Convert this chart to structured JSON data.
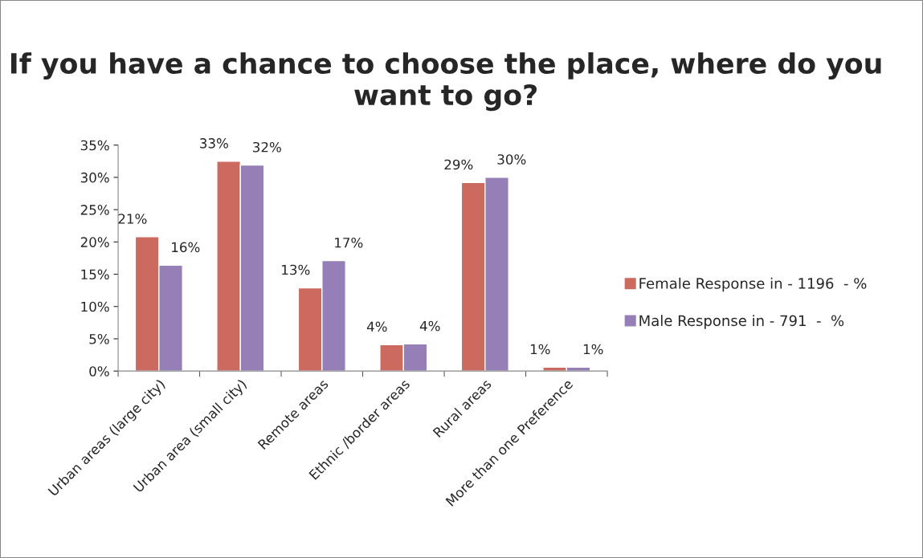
{
  "chart_data": {
    "type": "bar",
    "title": "If you have a chance to choose the place, where do you want to go?",
    "categories": [
      "Urban areas (large city)",
      "Urban area (small city)",
      "Remote areas",
      "Ethnic /border areas",
      "Rural areas",
      "More than one Preference"
    ],
    "series": [
      {
        "name": "Female Response in - 1196  - %",
        "color": "#cd6a60",
        "values": [
          20.8,
          32.5,
          12.9,
          4.1,
          29.2,
          0.6
        ],
        "value_labels": [
          "21%",
          "33%",
          "13%",
          "4%",
          "29%",
          "1%"
        ]
      },
      {
        "name": "Male Response in - 791  -  %",
        "color": "#957fb6",
        "values": [
          16.4,
          31.9,
          17.1,
          4.2,
          30.0,
          0.6
        ],
        "value_labels": [
          "16%",
          "32%",
          "17%",
          "4%",
          "30%",
          "1%"
        ]
      }
    ],
    "ylim": [
      0,
      35
    ],
    "yticks": [
      {
        "value": 0,
        "label": "0%"
      },
      {
        "value": 5,
        "label": "5%"
      },
      {
        "value": 10,
        "label": "10%"
      },
      {
        "value": 15,
        "label": "15%"
      },
      {
        "value": 20,
        "label": "20%"
      },
      {
        "value": 25,
        "label": "25%"
      },
      {
        "value": 30,
        "label": "30%"
      },
      {
        "value": 35,
        "label": "35%"
      }
    ],
    "grid": false,
    "legend": "right"
  }
}
